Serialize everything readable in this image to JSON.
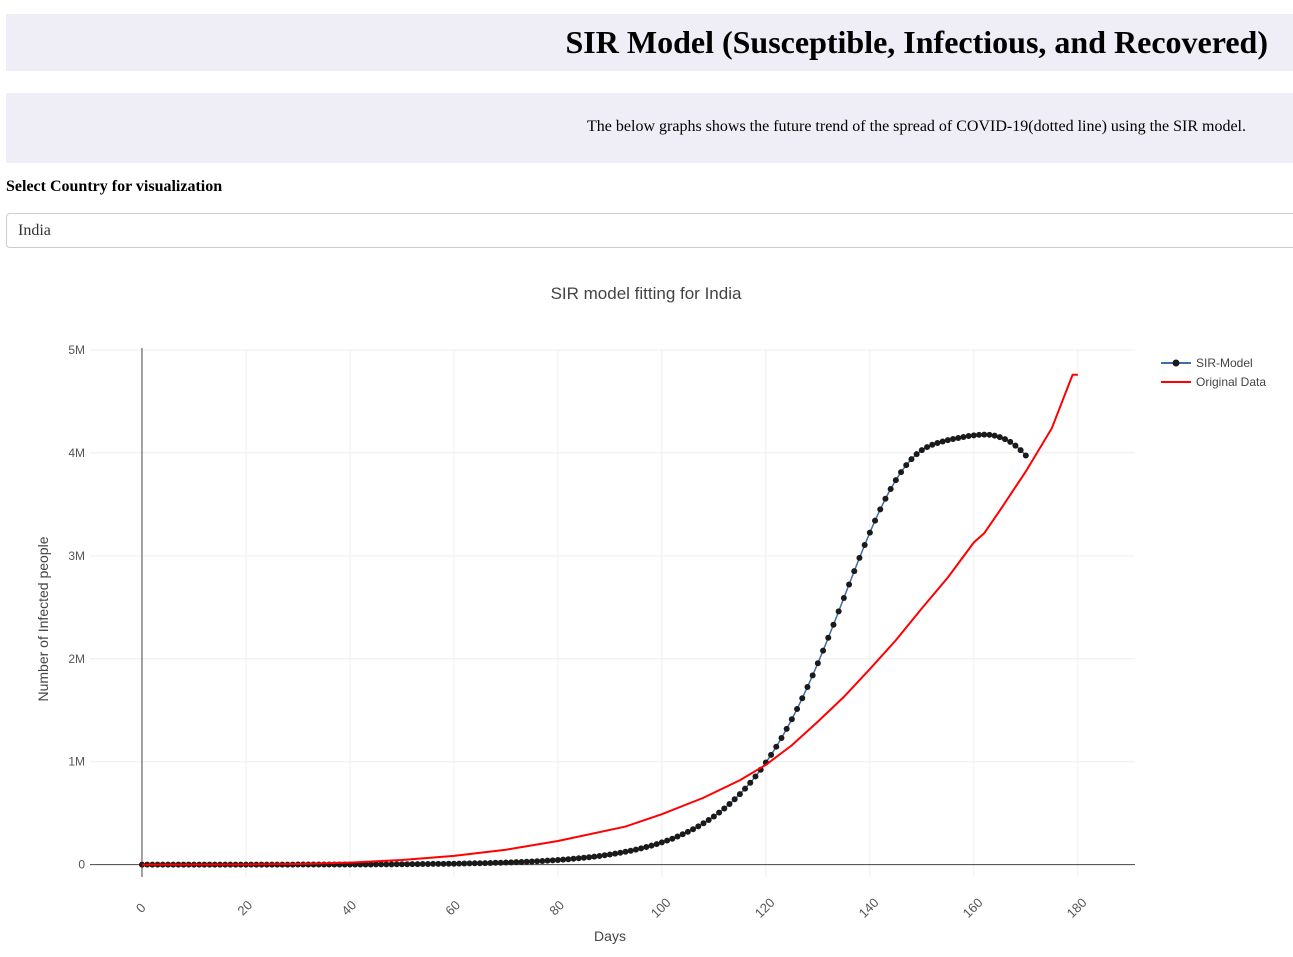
{
  "header": {
    "title": "SIR Model (Susceptible, Infectious, and Recovered)"
  },
  "description": {
    "text": "The below graphs shows the future trend of the spread of COVID-19(dotted line) using the SIR model."
  },
  "selector": {
    "label": "Select Country for visualization",
    "value": "India"
  },
  "chart_data": {
    "type": "line",
    "title": "SIR model fitting for India",
    "xlabel": "Days",
    "ylabel": "Number of Infected people",
    "xlim": [
      -10,
      191
    ],
    "ylim": [
      -120000,
      5000000
    ],
    "x_ticks": [
      0,
      20,
      40,
      60,
      80,
      100,
      120,
      140,
      160,
      180
    ],
    "y_ticks": [
      {
        "value": 0,
        "label": "0"
      },
      {
        "value": 1000000,
        "label": "1M"
      },
      {
        "value": 2000000,
        "label": "2M"
      },
      {
        "value": 3000000,
        "label": "3M"
      },
      {
        "value": 4000000,
        "label": "4M"
      },
      {
        "value": 5000000,
        "label": "5M"
      }
    ],
    "grid": true,
    "legend_position": "top-right",
    "series": [
      {
        "name": "SIR-Model",
        "style": "line+markers",
        "color": "#1a1a1a",
        "line_color": "#3e6ea8",
        "x_start": 0,
        "x_step": 1,
        "values": [
          0,
          0,
          0,
          0,
          0,
          0,
          0,
          0,
          0,
          0,
          0,
          0,
          0,
          0,
          0,
          0,
          0,
          0,
          0,
          0,
          0,
          0,
          0,
          0,
          0,
          0,
          0,
          0,
          0,
          0,
          1000,
          1000,
          1000,
          1000,
          1000,
          1000,
          1000,
          1000,
          2000,
          2000,
          2000,
          2000,
          2000,
          2000,
          2000,
          3000,
          3000,
          3000,
          3000,
          4000,
          4000,
          4000,
          5000,
          5000,
          6000,
          6000,
          7000,
          7000,
          8000,
          9000,
          9000,
          10000,
          11000,
          12000,
          13000,
          14000,
          15000,
          16000,
          18000,
          19000,
          21000,
          22000,
          24000,
          26000,
          28000,
          31000,
          33000,
          36000,
          39000,
          42000,
          45000,
          49000,
          53000,
          57000,
          62000,
          67000,
          72000,
          78000,
          84000,
          91000,
          99000,
          107000,
          116000,
          125000,
          135000,
          146000,
          158000,
          171000,
          185000,
          200000,
          216000,
          234000,
          252000,
          273000,
          295000,
          319000,
          344000,
          372000,
          402000,
          434000,
          468000,
          506000,
          546000,
          589000,
          635000,
          685000,
          738000,
          796000,
          857000,
          922000,
          992000,
          1066000,
          1146000,
          1230000,
          1319000,
          1413000,
          1512000,
          1617000,
          1726000,
          1839000,
          1957000,
          2079000,
          2204000,
          2331000,
          2461000,
          2591000,
          2722000,
          2852000,
          2980000,
          3105000,
          3226000,
          3342000,
          3452000,
          3555000,
          3650000,
          3736000,
          3814000,
          3882000,
          3940000,
          3988000,
          4027000,
          4057000,
          4079000,
          4096000,
          4111000,
          4124000,
          4135000,
          4145000,
          4155000,
          4164000,
          4171000,
          4176000,
          4178000,
          4176000,
          4168000,
          4154000,
          4134000,
          4107000,
          4071000,
          4027000,
          3975000
        ]
      },
      {
        "name": "Original Data",
        "style": "line",
        "color": "#ff0000",
        "points": [
          [
            0,
            0
          ],
          [
            20,
            2000
          ],
          [
            30,
            6000
          ],
          [
            40,
            20000
          ],
          [
            50,
            45000
          ],
          [
            60,
            85000
          ],
          [
            70,
            145000
          ],
          [
            80,
            230000
          ],
          [
            93,
            370000
          ],
          [
            100,
            490000
          ],
          [
            108,
            650000
          ],
          [
            115,
            820000
          ],
          [
            120,
            970000
          ],
          [
            125,
            1160000
          ],
          [
            130,
            1390000
          ],
          [
            135,
            1630000
          ],
          [
            140,
            1900000
          ],
          [
            145,
            2180000
          ],
          [
            150,
            2490000
          ],
          [
            155,
            2790000
          ],
          [
            160,
            3130000
          ],
          [
            162,
            3220000
          ],
          [
            165,
            3440000
          ],
          [
            170,
            3820000
          ],
          [
            175,
            4240000
          ],
          [
            179,
            4760000
          ],
          [
            180,
            4760000
          ]
        ]
      }
    ]
  }
}
